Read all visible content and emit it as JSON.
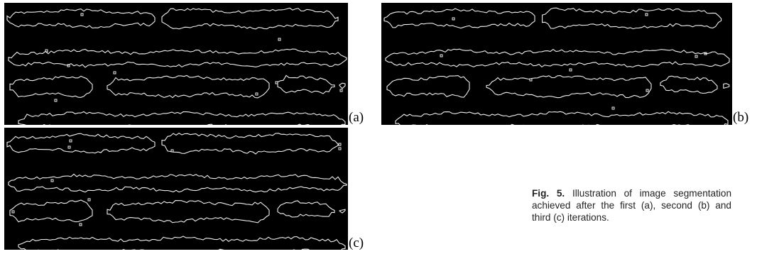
{
  "panels": [
    {
      "label": "(a)"
    },
    {
      "label": "(b)"
    },
    {
      "label": "(c)"
    }
  ],
  "caption": {
    "label": "Fig. 5.",
    "text": "Illustration of image segmentation achieved after the first (a), second (b) and third (c) iterations."
  }
}
